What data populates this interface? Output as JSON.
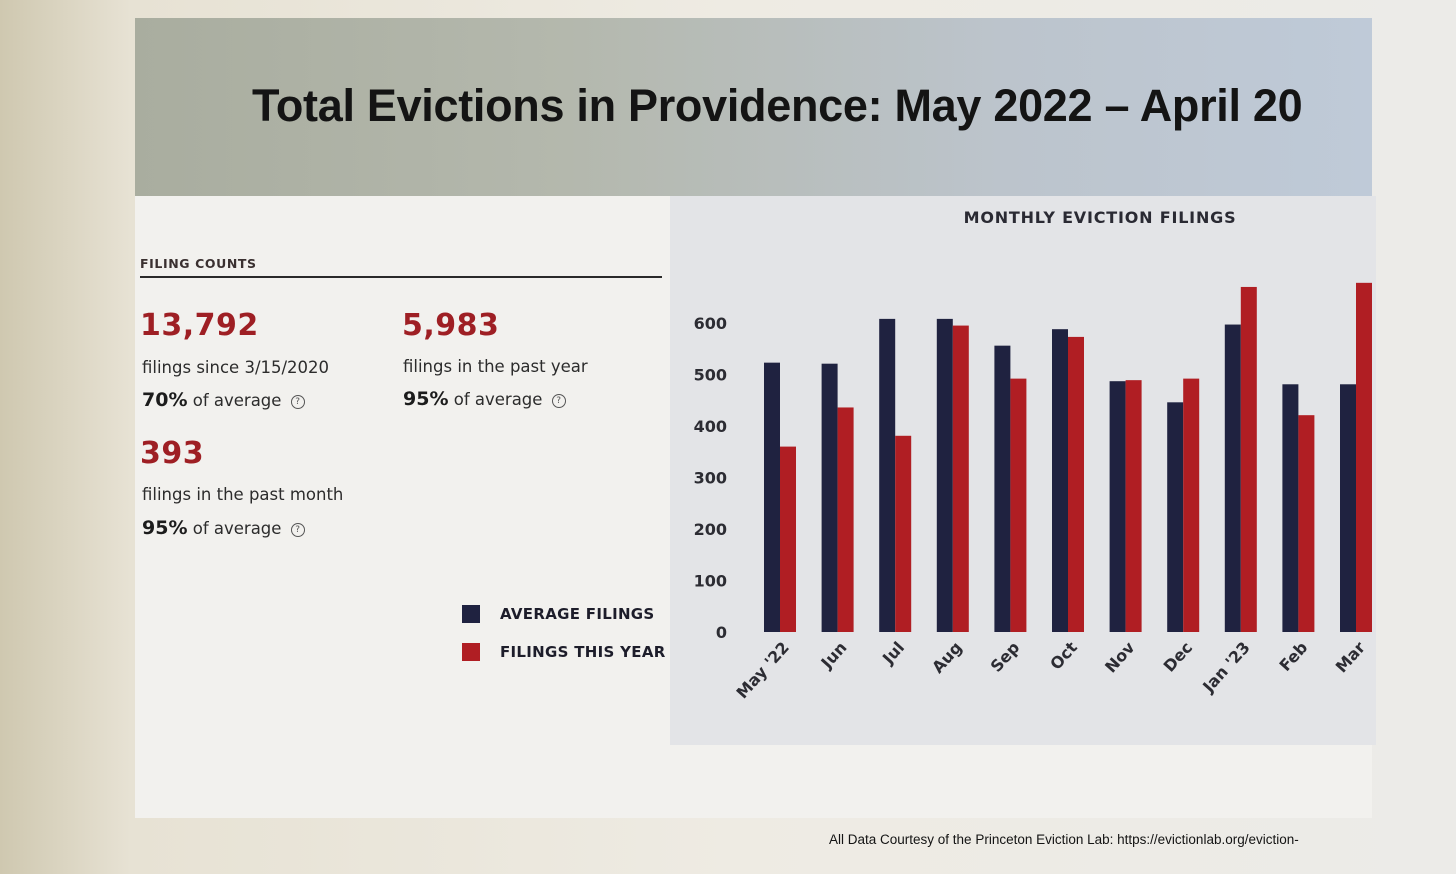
{
  "slide": {
    "title": "Total Evictions in Providence: May 2022 – April 20",
    "source": "All Data Courtesy of the Princeton Eviction Lab: https://evictionlab.org/eviction-"
  },
  "stats": {
    "heading": "FILING COUNTS",
    "items": [
      {
        "value": "13,792",
        "desc": "filings since 3/15/2020",
        "pct": "70%",
        "pct_suffix": "of average"
      },
      {
        "value": "5,983",
        "desc": "filings in the past year",
        "pct": "95%",
        "pct_suffix": "of average"
      },
      {
        "value": "393",
        "desc": "filings in the past month",
        "pct": "95%",
        "pct_suffix": "of average"
      }
    ]
  },
  "chart_data": {
    "type": "bar",
    "title": "MONTHLY EVICTION FILINGS",
    "categories": [
      "May '22",
      "Jun",
      "Jul",
      "Aug",
      "Sep",
      "Oct",
      "Nov",
      "Dec",
      "Jan '23",
      "Feb",
      "Mar"
    ],
    "series": [
      {
        "name": "AVERAGE FILINGS",
        "color": "#1f2240",
        "values": [
          523,
          521,
          608,
          608,
          556,
          588,
          487,
          446,
          597,
          481,
          481
        ]
      },
      {
        "name": "FILINGS THIS YEAR",
        "color": "#b01e23",
        "values": [
          360,
          436,
          381,
          595,
          492,
          573,
          489,
          492,
          670,
          421,
          678
        ]
      }
    ],
    "yticks": [
      0,
      100,
      200,
      300,
      400,
      500,
      600
    ],
    "ylim": [
      0,
      700
    ],
    "legend": "bottom-left",
    "grid": false
  }
}
